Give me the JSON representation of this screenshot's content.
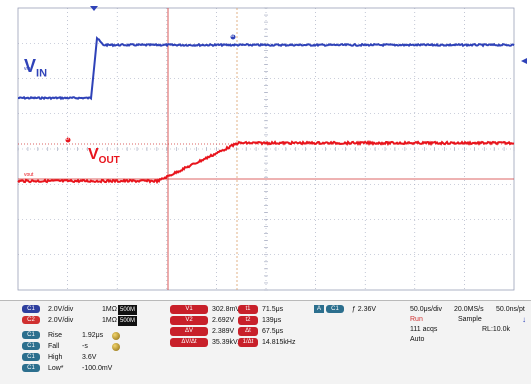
{
  "waveforms": {
    "vin_label": "V",
    "vin_label_sub": "IN",
    "vout_label": "V",
    "vout_label_sub": "OUT",
    "vin_small": "vin",
    "vout_small": "vout",
    "cursor_a": "a",
    "cursor_b": "b"
  },
  "channels": [
    {
      "badge": "C1",
      "scale": "2.0V/div",
      "impedance": "1MΩ",
      "bw": "500M"
    },
    {
      "badge": "C2",
      "scale": "2.0V/div",
      "impedance": "1MΩ",
      "bw": "500M"
    }
  ],
  "stats": [
    {
      "badge": "C1",
      "name": "Rise",
      "value": "1.92μs"
    },
    {
      "badge": "C1",
      "name": "Fall",
      "value": "-s"
    },
    {
      "badge": "C1",
      "name": "High",
      "value": "3.6V"
    },
    {
      "badge": "C1",
      "name": "Low*",
      "value": "-100.0mV"
    }
  ],
  "cursors": [
    {
      "badge": "V1",
      "value": "302.8mV"
    },
    {
      "badge": "V2",
      "value": "2.692V"
    },
    {
      "badge": "ΔV",
      "value": "2.389V"
    },
    {
      "badge": "ΔV/Δt",
      "value": "35.39kV/s"
    }
  ],
  "time_cursors": [
    {
      "badge": "t1",
      "value": "71.5μs"
    },
    {
      "badge": "t2",
      "value": "139μs"
    },
    {
      "badge": "Δt",
      "value": "67.5μs"
    },
    {
      "badge": "1/Δt",
      "value": "14.815kHz"
    }
  ],
  "trigger": {
    "badge": "C1",
    "level": "2.36V"
  },
  "acquisition": {
    "timebase": "50.0μs/div",
    "sample_rate": "20.0MS/s",
    "resolution": "50.0ns/pt",
    "state": "Run",
    "mode": "Sample",
    "acqs": "111 acqs",
    "record": "RL:10.0k",
    "trigger_mode": "Auto"
  },
  "colors": {
    "vin": "#2f42b8",
    "vout": "#e8141c",
    "grid": "#9aa0b8",
    "cursor_v": "#d03030",
    "cursor_t": "#d9a06a"
  }
}
